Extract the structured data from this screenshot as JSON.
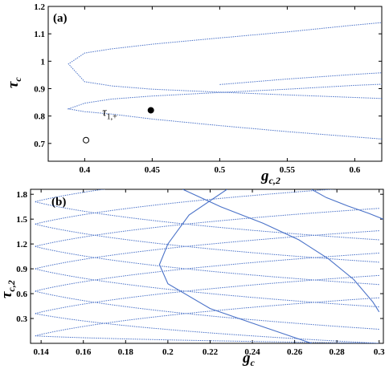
{
  "chart_data": [
    {
      "panel_label": "(a)",
      "type": "line",
      "xlabel": "g",
      "xlabel_sub": "c,2",
      "ylabel": "τ",
      "ylabel_sub": "c",
      "xlim": [
        0.373,
        0.62
      ],
      "ylim": [
        0.635,
        1.2
      ],
      "xticks": [
        0.4,
        0.45,
        0.5,
        0.55,
        0.6
      ],
      "xtick_labels": [
        "0.4",
        "0.45",
        "0.5",
        "0.55",
        "0.6"
      ],
      "yticks": [
        0.7,
        0.8,
        0.9,
        1.0,
        1.1,
        1.2
      ],
      "ytick_labels": [
        "0.7",
        "0.8",
        "0.9",
        "1",
        "1.1",
        "1.2"
      ],
      "curve_color": "#4a72c8",
      "series": [
        {
          "x": [
            0.62,
            0.55,
            0.5,
            0.45,
            0.42,
            0.4,
            0.388,
            0.4,
            0.42,
            0.45,
            0.5,
            0.55,
            0.6,
            0.62
          ],
          "y": [
            0.716,
            0.743,
            0.765,
            0.789,
            0.807,
            0.816,
            0.826,
            0.847,
            0.862,
            0.873,
            0.886,
            0.898,
            0.912,
            0.916
          ]
        },
        {
          "x": [
            0.62,
            0.55,
            0.5,
            0.45,
            0.42,
            0.4,
            0.388,
            0.4,
            0.42,
            0.45,
            0.5,
            0.55,
            0.6,
            0.62
          ],
          "y": [
            0.864,
            0.877,
            0.887,
            0.898,
            0.91,
            0.925,
            0.99,
            1.03,
            1.045,
            1.062,
            1.085,
            1.107,
            1.132,
            1.141
          ]
        },
        {
          "x": [
            0.5,
            0.55,
            0.6,
            0.62
          ],
          "y": [
            0.915,
            0.935,
            0.952,
            0.958
          ]
        }
      ],
      "markers": [
        {
          "x": 0.449,
          "y": 0.821,
          "fill": "filled"
        },
        {
          "x": 0.401,
          "y": 0.712,
          "fill": "open"
        }
      ],
      "annotation": {
        "text": "τ",
        "sub": "1,+",
        "x": 0.413,
        "y": 0.8
      }
    },
    {
      "panel_label": "(b)",
      "type": "line",
      "xlabel": "g",
      "xlabel_sub": "c",
      "ylabel": "τ",
      "ylabel_sub": "c,2",
      "xlim": [
        0.135,
        0.302
      ],
      "ylim": [
        0.0,
        1.86
      ],
      "xticks": [
        0.14,
        0.16,
        0.18,
        0.2,
        0.22,
        0.24,
        0.26,
        0.28,
        0.3
      ],
      "xtick_labels": [
        "0.14",
        "0.16",
        "0.18",
        "0.2",
        "0.22",
        "0.24",
        "0.26",
        "0.28",
        "0.3"
      ],
      "yticks": [
        0.3,
        0.6,
        0.9,
        1.2,
        1.5,
        1.8
      ],
      "ytick_labels": [
        "0.3",
        "0.6",
        "0.9",
        "1.2",
        "1.5",
        "1.8"
      ],
      "curve_color": "#4a72c8",
      "branches": [
        {
          "vertex_x": 0.137,
          "vertex_y": 0.09,
          "tip_x": 0.3,
          "upper_tip_y": 0.55,
          "lower_tip_y": 0.0
        },
        {
          "vertex_x": 0.137,
          "vertex_y": 0.36,
          "tip_x": 0.3,
          "upper_tip_y": 0.82,
          "lower_tip_y": 0.0
        },
        {
          "vertex_x": 0.137,
          "vertex_y": 0.63,
          "tip_x": 0.3,
          "upper_tip_y": 1.09,
          "lower_tip_y": 0.17
        },
        {
          "vertex_x": 0.137,
          "vertex_y": 0.9,
          "tip_x": 0.3,
          "upper_tip_y": 1.36,
          "lower_tip_y": 0.44
        },
        {
          "vertex_x": 0.137,
          "vertex_y": 1.17,
          "tip_x": 0.3,
          "upper_tip_y": 1.63,
          "lower_tip_y": 0.71
        },
        {
          "vertex_x": 0.137,
          "vertex_y": 1.44,
          "tip_x": 0.3,
          "upper_tip_y": 1.9,
          "lower_tip_y": 0.98
        },
        {
          "vertex_x": 0.137,
          "vertex_y": 1.71,
          "tip_x": 0.3,
          "upper_tip_y": 2.17,
          "lower_tip_y": 1.25
        }
      ],
      "solid_curves": [
        {
          "x": [
            0.228,
            0.21,
            0.2,
            0.196,
            0.2,
            0.22,
            0.245,
            0.268
          ],
          "y": [
            1.86,
            1.55,
            1.2,
            0.95,
            0.72,
            0.42,
            0.2,
            0.0
          ]
        },
        {
          "x": [
            0.207,
            0.225,
            0.245,
            0.262,
            0.276,
            0.288,
            0.297,
            0.3
          ],
          "y": [
            1.86,
            1.65,
            1.45,
            1.25,
            1.02,
            0.77,
            0.5,
            0.38
          ]
        },
        {
          "x": [
            0.268,
            0.275,
            0.285,
            0.295,
            0.302
          ],
          "y": [
            1.86,
            1.76,
            1.66,
            1.57,
            1.5
          ]
        }
      ]
    }
  ]
}
